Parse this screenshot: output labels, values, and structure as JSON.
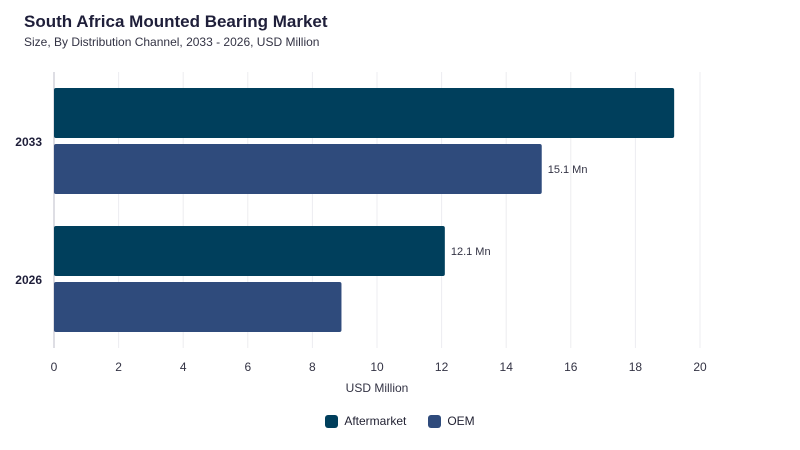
{
  "colors": {
    "aftermarket": "#003f5c",
    "oem": "#2f4b7c"
  },
  "chart_data": {
    "type": "bar",
    "orientation": "horizontal",
    "title": "South Africa Mounted Bearing Market",
    "subtitle": "Size, By Distribution Channel, 2033 - 2026, USD Million",
    "xlabel": "USD Million",
    "ylabel": "",
    "xlim": [
      0,
      20
    ],
    "xticks": [
      "0",
      "2",
      "4",
      "6",
      "8",
      "10",
      "12",
      "14",
      "16",
      "18",
      "20"
    ],
    "categories": [
      "2033",
      "2026"
    ],
    "series": [
      {
        "name": "Aftermarket",
        "values": [
          19.2,
          12.1
        ],
        "labels": [
          "",
          "12.1 Mn"
        ]
      },
      {
        "name": "OEM",
        "values": [
          15.1,
          8.9
        ],
        "labels": [
          "15.1 Mn",
          ""
        ]
      }
    ],
    "grid": true,
    "legend": "bottom-center"
  }
}
